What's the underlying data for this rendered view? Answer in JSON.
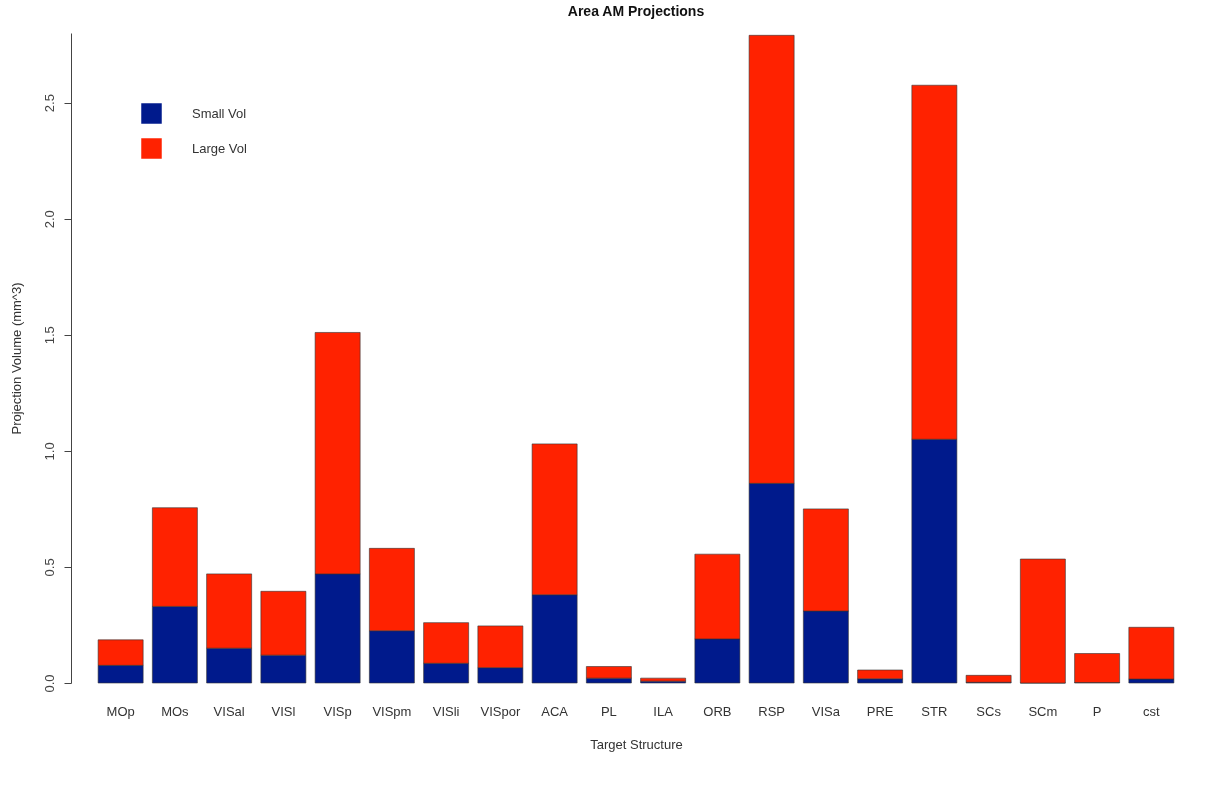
{
  "chart_data": {
    "type": "bar",
    "title": "Area AM Projections",
    "xlabel": "Target Structure",
    "ylabel": "Projection Volume (mm^3)",
    "categories": [
      "MOp",
      "MOs",
      "VISal",
      "VISl",
      "VISp",
      "VISpm",
      "VISli",
      "VISpor",
      "ACA",
      "PL",
      "ILA",
      "ORB",
      "RSP",
      "VISa",
      "PRE",
      "STR",
      "SCs",
      "SCm",
      "P",
      "cst"
    ],
    "series": [
      {
        "name": "Small Vol",
        "color": "#001a8c",
        "values": [
          0.076,
          0.33,
          0.15,
          0.12,
          0.47,
          0.225,
          0.085,
          0.066,
          0.38,
          0.021,
          0.008,
          0.19,
          0.86,
          0.31,
          0.018,
          1.05,
          0.003,
          0,
          0.002,
          0.017
        ]
      },
      {
        "name": "Large Vol",
        "color": "#ff2200",
        "values": [
          0.11,
          0.425,
          0.32,
          0.275,
          1.04,
          0.355,
          0.175,
          0.18,
          0.65,
          0.05,
          0.013,
          0.365,
          1.93,
          0.44,
          0.038,
          1.525,
          0.03,
          0.534,
          0.125,
          0.223
        ]
      }
    ],
    "stacked": true,
    "ylim": [
      0,
      2.8
    ],
    "yticks": [
      {
        "value": 0,
        "label": "0.0"
      },
      {
        "value": 0.5,
        "label": "0.5"
      },
      {
        "value": 1,
        "label": "1.0"
      },
      {
        "value": 1.5,
        "label": "1.5"
      },
      {
        "value": 2,
        "label": "2.0"
      },
      {
        "value": 2.5,
        "label": "2.5"
      }
    ],
    "grid": false,
    "legend": "top left"
  }
}
